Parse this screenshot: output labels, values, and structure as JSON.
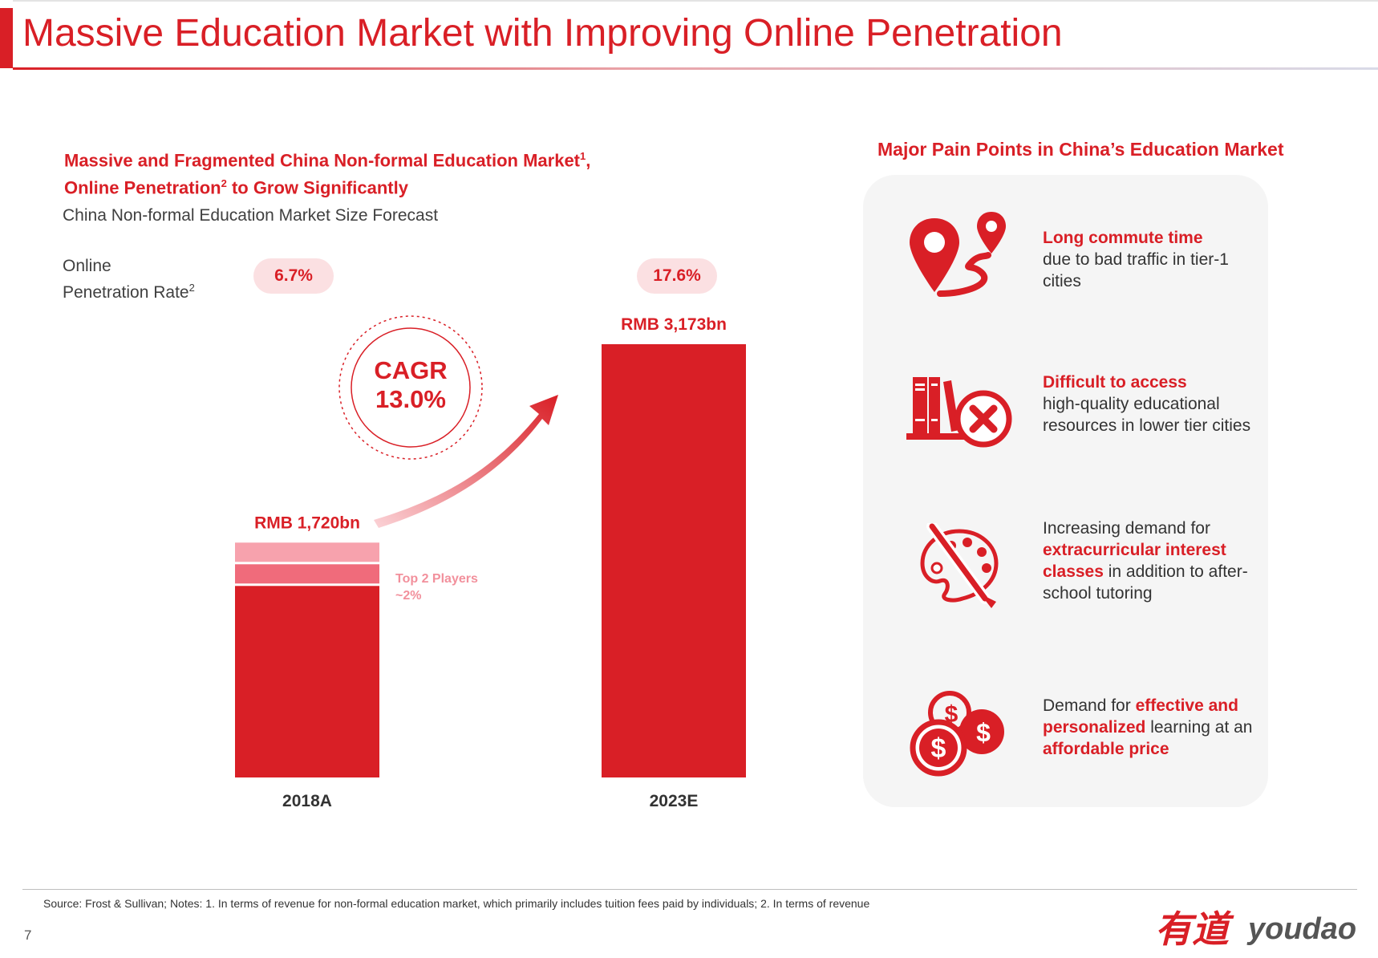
{
  "title": "Massive Education Market with Improving Online Penetration",
  "left_heading": {
    "line1": "Massive and Fragmented China Non-formal Education Market",
    "line1_sup": "1",
    "line1_tail": ",",
    "line2_a": "Online Penetration",
    "line2_sup": "2",
    "line2_b": " to Grow Significantly"
  },
  "penetration_label": {
    "line1": "Online",
    "line2": "Penetration Rate",
    "sup": "2"
  },
  "penetration_rates": [
    "6.7%",
    "17.6%"
  ],
  "cagr": {
    "label": "CAGR",
    "value": "13.0%"
  },
  "top_players": {
    "line1": "Top 2 Players",
    "line2": "~2%"
  },
  "chart_data": {
    "type": "bar",
    "title": "China Non-formal Education Market Size Forecast",
    "categories": [
      "2018A",
      "2023E"
    ],
    "series": [
      {
        "values": [
          1720,
          3173
        ]
      }
    ],
    "data_labels": [
      "RMB 1,720bn",
      "RMB 3,173bn"
    ],
    "unit": "RMB bn",
    "ylim": [
      0,
      3300
    ],
    "grid": false,
    "legend": "none",
    "annotations": [
      "Top 2 Players ~2%",
      "CAGR 13.0%"
    ]
  },
  "right_heading": "Major Pain Points in China’s Education Market",
  "pain_points": [
    {
      "icon": "map-pin-route-icon",
      "parts": [
        {
          "text": "Long commute time",
          "hl": true,
          "br": true
        },
        {
          "text": "due to bad traffic in tier-1 cities",
          "hl": false
        }
      ]
    },
    {
      "icon": "books-cross-icon",
      "parts": [
        {
          "text": "Difficult to access",
          "hl": true,
          "br": true
        },
        {
          "text": "high-quality educational resources in lower tier cities",
          "hl": false
        }
      ]
    },
    {
      "icon": "palette-brush-icon",
      "parts": [
        {
          "text": "Increasing demand for ",
          "hl": false
        },
        {
          "text": "extracurricular interest classes",
          "hl": true
        },
        {
          "text": " in addition to after-school tutoring",
          "hl": false
        }
      ]
    },
    {
      "icon": "coins-dollar-icon",
      "parts": [
        {
          "text": "Demand for ",
          "hl": false
        },
        {
          "text": "effective and personalized",
          "hl": true
        },
        {
          "text": " learning at an ",
          "hl": false
        },
        {
          "text": "affordable price",
          "hl": true
        }
      ]
    }
  ],
  "footer": {
    "source": "Source: Frost & Sullivan; Notes: 1. In terms of revenue for non-formal education market, which primarily includes tuition fees paid by individuals; 2. In terms of revenue",
    "page": "7",
    "logo_cn": "有道",
    "logo_en": "youdao"
  },
  "colors": {
    "accent": "#d91f26",
    "pill_bg": "#fbe0e2",
    "top1": "#f7a2ad",
    "top2": "#f06b7b",
    "panel": "#f5f5f5"
  }
}
